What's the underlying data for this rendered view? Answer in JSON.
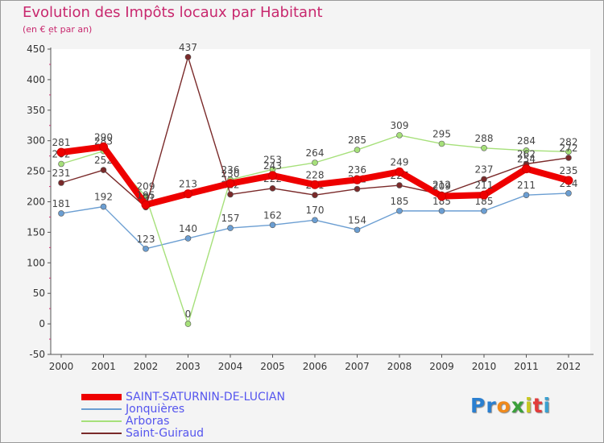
{
  "chart_data": {
    "type": "line",
    "title": "Evolution des Impôts locaux par Habitant",
    "subtitle": "(en € et par an)",
    "xlabel": "",
    "ylabel": "",
    "ylim": [
      -50,
      450
    ],
    "yticks": [
      "-50",
      "0",
      "50",
      "100",
      "150",
      "200",
      "250",
      "300",
      "350",
      "400",
      "450"
    ],
    "categories": [
      "2000",
      "2001",
      "2002",
      "2003",
      "2004",
      "2005",
      "2006",
      "2007",
      "2008",
      "2009",
      "2010",
      "2011",
      "2012"
    ],
    "grid": false,
    "legend_position": "bottom-left",
    "series": [
      {
        "name": "Jonquières",
        "color": "#6b9ed2",
        "values": [
          181,
          192,
          123,
          140,
          157,
          162,
          170,
          154,
          185,
          185,
          185,
          211,
          214
        ],
        "labels": [
          "181",
          "192",
          "123",
          "140",
          "157",
          "162",
          "170",
          "154",
          "185",
          "185",
          "185",
          "211",
          "214"
        ]
      },
      {
        "name": "Arboras",
        "color": "#a6e07a",
        "values": [
          262,
          283,
          209,
          0,
          236,
          253,
          264,
          285,
          309,
          295,
          288,
          284,
          282
        ],
        "labels": [
          "262",
          "283",
          "209",
          "0",
          "236",
          "253",
          "264",
          "285",
          "309",
          "295",
          "288",
          "284",
          "282"
        ]
      },
      {
        "name": "Saint-Guiraud",
        "color": "#7a2a2a",
        "values": [
          231,
          252,
          191,
          437,
          212,
          222,
          211,
          221,
          227,
          212,
          237,
          262,
          272
        ],
        "labels": [
          "231",
          "252",
          "191",
          "437",
          "212",
          "222",
          "211",
          "221",
          "227",
          "212",
          "237",
          "262",
          "272"
        ]
      },
      {
        "name": "SAINT-SATURNIN-DE-LUCIAN",
        "color": "#ee0000",
        "values": [
          281,
          290,
          195,
          213,
          230,
          243,
          228,
          236,
          249,
          209,
          211,
          254,
          235
        ],
        "labels": [
          "281",
          "290",
          "195",
          "213",
          "230",
          "243",
          "228",
          "236",
          "249",
          "209",
          "211",
          "254",
          "235"
        ]
      }
    ]
  },
  "legend": [
    {
      "name": "SAINT-SATURNIN-DE-LUCIAN",
      "color": "#ee0000"
    },
    {
      "name": "Jonquières",
      "color": "#6b9ed2"
    },
    {
      "name": "Arboras",
      "color": "#a6e07a"
    },
    {
      "name": "Saint-Guiraud",
      "color": "#7a2a2a"
    }
  ],
  "logo": {
    "text": "Proxiti",
    "letter_colors": [
      "#2a7fd0",
      "#2a7fd0",
      "#f08a1c",
      "#3aa03a",
      "#c8c820",
      "#e23b3b",
      "#3aa0d0"
    ]
  }
}
